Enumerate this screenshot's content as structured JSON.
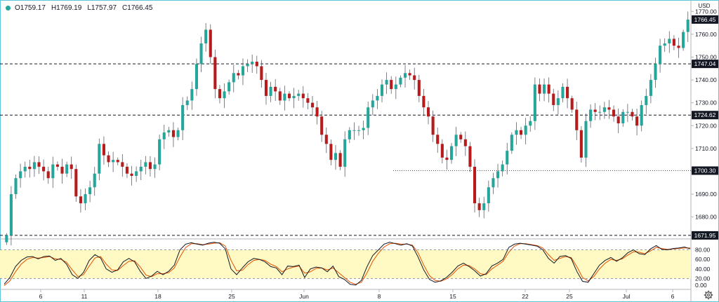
{
  "header": {
    "status_icon": "live-dot-icon",
    "open": "O1759.17",
    "high": "H1769.19",
    "low": "L1757.97",
    "close": "C1766.45"
  },
  "colors": {
    "up": "#26a69a",
    "down": "#b71c1c",
    "osc_k": "#131722",
    "osc_d": "#e65100",
    "osc_band": "#fff9c4"
  },
  "chart_data": [
    {
      "type": "candlestick",
      "currency_label": "USD",
      "y_ticks": [
        "1680.00",
        "1690.00",
        "1700.00",
        "1710.00",
        "1720.00",
        "1730.00",
        "1740.00",
        "1750.00",
        "1760.00",
        "1770.00"
      ],
      "ylim": [
        1671,
        1775
      ],
      "x_ticks": [
        "6",
        "11",
        "18",
        "25",
        "Jun",
        "8",
        "15",
        "22",
        "25",
        "Jul",
        "6"
      ],
      "last_price": "1766.45",
      "levels": [
        {
          "label": "1747.04",
          "style": "dashed"
        },
        {
          "label": "1724.62",
          "style": "dashed"
        },
        {
          "label": "1700.30",
          "style": "dotted"
        },
        {
          "label": "1671.95",
          "style": "dashed"
        }
      ],
      "closes": [
        1671.95,
        1690,
        1697,
        1700,
        1702,
        1701,
        1704,
        1702,
        1700,
        1697,
        1703,
        1702,
        1699,
        1703,
        1701,
        1689,
        1686,
        1690,
        1693,
        1699,
        1712,
        1707,
        1704,
        1705,
        1704,
        1702,
        1699,
        1698,
        1700,
        1702,
        1704,
        1701,
        1703,
        1714,
        1717,
        1718,
        1715,
        1718,
        1729,
        1731,
        1736,
        1747,
        1756,
        1762,
        1750,
        1736,
        1732,
        1735,
        1739,
        1743,
        1742,
        1746,
        1747,
        1748,
        1746,
        1740,
        1733,
        1737,
        1735,
        1731,
        1734,
        1732,
        1733,
        1734,
        1732,
        1730,
        1728,
        1724,
        1716,
        1712,
        1705,
        1708,
        1702,
        1714,
        1718,
        1718,
        1718,
        1719,
        1728,
        1731,
        1733,
        1738,
        1740,
        1736,
        1738,
        1741,
        1743,
        1742,
        1740,
        1733,
        1728,
        1724,
        1716,
        1712,
        1706,
        1705,
        1711,
        1716,
        1714,
        1711,
        1702,
        1686,
        1683,
        1686,
        1693,
        1697,
        1700,
        1703,
        1709,
        1716,
        1718,
        1716,
        1720,
        1722,
        1738,
        1734,
        1738,
        1734,
        1729,
        1732,
        1737,
        1732,
        1727,
        1718,
        1706,
        1722,
        1727,
        1726,
        1726,
        1728,
        1727,
        1724,
        1721,
        1726,
        1726,
        1724,
        1720,
        1729,
        1733,
        1740,
        1747,
        1755,
        1756,
        1758,
        1755,
        1754,
        1761,
        1766.45
      ],
      "oscillator": {
        "y_ticks": [
          "80.00",
          "60.00",
          "40.00",
          "20.00",
          "0.00"
        ],
        "band": [
          20,
          80
        ],
        "ylim": [
          0,
          100
        ],
        "k": [
          8,
          22,
          45,
          58,
          65,
          66,
          61,
          66,
          67,
          58,
          62,
          50,
          28,
          20,
          33,
          58,
          70,
          63,
          40,
          33,
          38,
          55,
          62,
          55,
          35,
          20,
          25,
          35,
          28,
          35,
          48,
          80,
          92,
          95,
          92,
          90,
          94,
          96,
          94,
          82,
          40,
          28,
          42,
          55,
          62,
          60,
          55,
          45,
          42,
          28,
          46,
          45,
          48,
          22,
          40,
          44,
          42,
          34,
          46,
          24,
          18,
          8,
          6,
          16,
          45,
          68,
          80,
          92,
          96,
          93,
          90,
          93,
          88,
          65,
          38,
          18,
          12,
          15,
          22,
          33,
          46,
          52,
          45,
          36,
          25,
          30,
          46,
          52,
          60,
          85,
          92,
          94,
          92,
          90,
          88,
          80,
          62,
          52,
          66,
          68,
          62,
          35,
          14,
          12,
          30,
          48,
          58,
          64,
          56,
          63,
          74,
          80,
          72,
          70,
          82,
          89,
          81,
          80,
          83,
          84,
          86,
          82
        ],
        "d": [
          5,
          15,
          34,
          50,
          60,
          64,
          63,
          64,
          66,
          61,
          60,
          54,
          38,
          24,
          28,
          46,
          63,
          66,
          50,
          38,
          37,
          47,
          56,
          57,
          44,
          27,
          24,
          30,
          30,
          32,
          42,
          65,
          85,
          93,
          93,
          91,
          92,
          94,
          95,
          88,
          58,
          36,
          37,
          49,
          58,
          60,
          58,
          50,
          45,
          34,
          40,
          44,
          46,
          31,
          34,
          41,
          42,
          38,
          42,
          32,
          22,
          12,
          8,
          12,
          32,
          56,
          73,
          86,
          93,
          94,
          92,
          92,
          90,
          74,
          48,
          26,
          16,
          14,
          19,
          28,
          40,
          48,
          47,
          40,
          30,
          28,
          40,
          48,
          56,
          75,
          88,
          93,
          93,
          91,
          89,
          84,
          70,
          58,
          62,
          66,
          64,
          45,
          22,
          15,
          24,
          40,
          52,
          60,
          58,
          61,
          69,
          76,
          75,
          72,
          78,
          85,
          83,
          81,
          82,
          83,
          84,
          84
        ]
      }
    }
  ]
}
